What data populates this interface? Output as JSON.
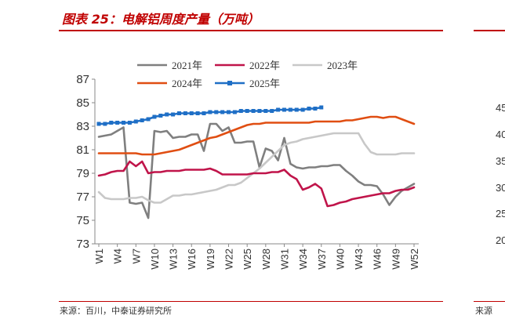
{
  "header": {
    "title": "图表 25：电解铝周度产量（万吨）"
  },
  "footer": {
    "source": "来源：百川，中泰证券研究所",
    "source_right": "来源"
  },
  "right_panel": {
    "tick_labels": [
      "45",
      "40",
      "35",
      "30",
      "25",
      "20"
    ]
  },
  "chart_data": {
    "type": "line",
    "title": "电解铝周度产量（万吨）",
    "xlabel": "",
    "ylabel": "",
    "ylim": [
      73,
      87
    ],
    "yticks": [
      73,
      75,
      77,
      79,
      81,
      83,
      85,
      87
    ],
    "xtick_labels": [
      "W1",
      "W4",
      "W7",
      "W10",
      "W13",
      "W16",
      "W19",
      "W22",
      "W25",
      "W28",
      "W31",
      "W34",
      "W37",
      "W40",
      "W43",
      "W46",
      "W49",
      "W52"
    ],
    "legend": {
      "position": "top",
      "entries": [
        "2021年",
        "2022年",
        "2023年",
        "2024年",
        "2025年"
      ]
    },
    "series": [
      {
        "name": "2021年",
        "color": "#7f7f7f",
        "marker": "none",
        "values": [
          82.1,
          82.2,
          82.3,
          82.6,
          82.9,
          76.5,
          76.4,
          76.5,
          75.2,
          82.6,
          82.5,
          82.6,
          82.0,
          82.1,
          82.1,
          82.3,
          82.3,
          80.9,
          83.2,
          83.2,
          82.6,
          82.9,
          81.6,
          81.6,
          81.7,
          81.7,
          79.5,
          81.1,
          80.9,
          80.1,
          82.0,
          79.8,
          79.5,
          79.4,
          79.5,
          79.5,
          79.6,
          79.6,
          79.7,
          79.7,
          79.2,
          78.8,
          78.3,
          78.0,
          78.0,
          77.9,
          77.2,
          76.3,
          77.0,
          77.5,
          77.8,
          78.1
        ]
      },
      {
        "name": "2022年",
        "color": "#c0144a",
        "marker": "none",
        "values": [
          78.8,
          78.9,
          79.1,
          79.2,
          79.2,
          80.0,
          79.6,
          80.0,
          79.0,
          79.1,
          79.1,
          79.2,
          79.2,
          79.2,
          79.3,
          79.3,
          79.3,
          79.3,
          79.4,
          79.2,
          78.9,
          78.9,
          78.9,
          78.9,
          78.9,
          79.0,
          79.0,
          79.0,
          79.1,
          79.1,
          79.3,
          78.8,
          78.5,
          77.6,
          77.8,
          78.1,
          77.7,
          76.2,
          76.3,
          76.5,
          76.6,
          76.8,
          76.9,
          77.0,
          77.1,
          77.2,
          77.3,
          77.3,
          77.5,
          77.6,
          77.6,
          77.8
        ]
      },
      {
        "name": "2023年",
        "color": "#c8c8c8",
        "marker": "none",
        "values": [
          77.4,
          76.9,
          76.8,
          76.8,
          76.8,
          76.9,
          76.9,
          77.0,
          76.7,
          76.5,
          76.5,
          76.8,
          77.1,
          77.1,
          77.2,
          77.2,
          77.3,
          77.4,
          77.5,
          77.6,
          77.8,
          78.0,
          78.0,
          78.2,
          78.6,
          79.0,
          79.4,
          79.9,
          80.4,
          80.9,
          81.4,
          81.6,
          81.7,
          81.9,
          82.0,
          82.1,
          82.2,
          82.3,
          82.4,
          82.4,
          82.4,
          82.4,
          82.4,
          81.5,
          80.8,
          80.6,
          80.6,
          80.6,
          80.6,
          80.7,
          80.7,
          80.7
        ]
      },
      {
        "name": "2024年",
        "color": "#e04e12",
        "marker": "none",
        "values": [
          80.7,
          80.7,
          80.7,
          80.7,
          80.7,
          80.7,
          80.7,
          80.6,
          80.6,
          80.6,
          80.7,
          80.8,
          80.9,
          81.0,
          81.2,
          81.4,
          81.6,
          81.8,
          82.0,
          82.1,
          82.3,
          82.5,
          82.7,
          82.9,
          83.1,
          83.2,
          83.2,
          83.3,
          83.3,
          83.3,
          83.3,
          83.3,
          83.3,
          83.3,
          83.3,
          83.4,
          83.4,
          83.4,
          83.4,
          83.4,
          83.5,
          83.5,
          83.6,
          83.7,
          83.8,
          83.8,
          83.7,
          83.8,
          83.8,
          83.6,
          83.4,
          83.2
        ]
      },
      {
        "name": "2025年",
        "color": "#1f6fc6",
        "marker": "square",
        "values": [
          83.2,
          83.2,
          83.3,
          83.3,
          83.3,
          83.3,
          83.4,
          83.5,
          83.6,
          83.8,
          83.9,
          84.0,
          84.0,
          84.1,
          84.1,
          84.1,
          84.1,
          84.1,
          84.2,
          84.2,
          84.2,
          84.2,
          84.2,
          84.3,
          84.3,
          84.3,
          84.3,
          84.3,
          84.3,
          84.4,
          84.4,
          84.4,
          84.4,
          84.4,
          84.5,
          84.5,
          84.6
        ]
      }
    ]
  }
}
